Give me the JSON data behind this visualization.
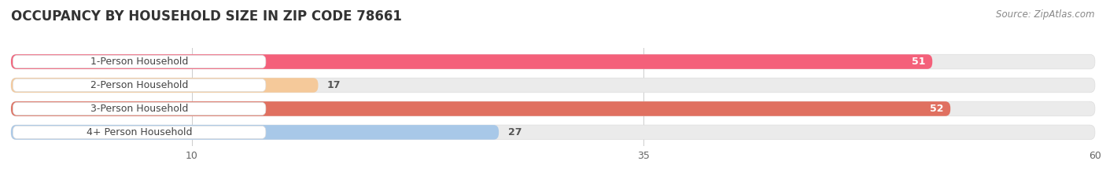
{
  "title": "OCCUPANCY BY HOUSEHOLD SIZE IN ZIP CODE 78661",
  "source": "Source: ZipAtlas.com",
  "categories": [
    "1-Person Household",
    "2-Person Household",
    "3-Person Household",
    "4+ Person Household"
  ],
  "values": [
    51,
    17,
    52,
    27
  ],
  "bar_colors": [
    "#F4607A",
    "#F5C99A",
    "#E07060",
    "#A8C8E8"
  ],
  "bar_bg_color": "#EBEBEB",
  "label_bg_color": "#FFFFFF",
  "xlim": [
    0,
    60
  ],
  "xticks": [
    10,
    35,
    60
  ],
  "figsize": [
    14.06,
    2.33
  ],
  "dpi": 100,
  "background_color": "#FFFFFF",
  "title_fontsize": 12,
  "label_fontsize": 9,
  "value_fontsize": 9,
  "source_fontsize": 8.5
}
